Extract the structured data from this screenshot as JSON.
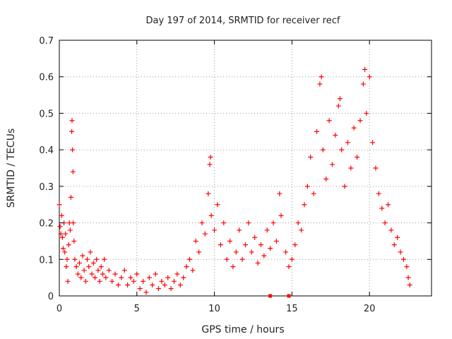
{
  "chart_data": {
    "type": "scatter",
    "title": "Day 197 of 2014, SRMTID for receiver recf",
    "xlabel": "GPS time / hours",
    "ylabel": "SRMTID / TECUs",
    "xlim": [
      0,
      24
    ],
    "ylim": [
      0,
      0.7
    ],
    "x_ticks": [
      "0",
      "5",
      "10",
      "15",
      "20"
    ],
    "y_ticks": [
      "0",
      "0.1",
      "0.2",
      "0.3",
      "0.4",
      "0.5",
      "0.6",
      "0.7"
    ],
    "grid": true,
    "marker": "plus",
    "color": "#ff0000",
    "series": [
      {
        "name": "SRMTID",
        "points": [
          [
            0.0,
            0.25
          ],
          [
            0.05,
            0.19
          ],
          [
            0.1,
            0.17
          ],
          [
            0.15,
            0.22
          ],
          [
            0.2,
            0.16
          ],
          [
            0.25,
            0.13
          ],
          [
            0.3,
            0.2
          ],
          [
            0.35,
            0.12
          ],
          [
            0.4,
            0.17
          ],
          [
            0.45,
            0.08
          ],
          [
            0.5,
            0.1
          ],
          [
            0.55,
            0.04
          ],
          [
            0.6,
            0.14
          ],
          [
            0.65,
            0.2
          ],
          [
            0.7,
            0.18
          ],
          [
            0.75,
            0.27
          ],
          [
            0.8,
            0.45
          ],
          [
            0.82,
            0.48
          ],
          [
            0.85,
            0.4
          ],
          [
            0.88,
            0.34
          ],
          [
            0.9,
            0.2
          ],
          [
            0.95,
            0.15
          ],
          [
            1.0,
            0.1
          ],
          [
            1.1,
            0.08
          ],
          [
            1.2,
            0.06
          ],
          [
            1.3,
            0.09
          ],
          [
            1.4,
            0.05
          ],
          [
            1.5,
            0.11
          ],
          [
            1.6,
            0.07
          ],
          [
            1.7,
            0.04
          ],
          [
            1.8,
            0.1
          ],
          [
            1.9,
            0.08
          ],
          [
            2.0,
            0.12
          ],
          [
            2.1,
            0.06
          ],
          [
            2.2,
            0.09
          ],
          [
            2.3,
            0.05
          ],
          [
            2.4,
            0.1
          ],
          [
            2.5,
            0.07
          ],
          [
            2.6,
            0.04
          ],
          [
            2.7,
            0.08
          ],
          [
            2.8,
            0.06
          ],
          [
            2.9,
            0.1
          ],
          [
            3.0,
            0.05
          ],
          [
            3.2,
            0.07
          ],
          [
            3.4,
            0.04
          ],
          [
            3.6,
            0.06
          ],
          [
            3.8,
            0.03
          ],
          [
            4.0,
            0.05
          ],
          [
            4.2,
            0.07
          ],
          [
            4.4,
            0.03
          ],
          [
            4.6,
            0.05
          ],
          [
            4.8,
            0.04
          ],
          [
            5.0,
            0.06
          ],
          [
            5.2,
            0.02
          ],
          [
            5.4,
            0.04
          ],
          [
            5.6,
            0.01
          ],
          [
            5.8,
            0.05
          ],
          [
            6.0,
            0.03
          ],
          [
            6.2,
            0.06
          ],
          [
            6.4,
            0.02
          ],
          [
            6.6,
            0.04
          ],
          [
            6.8,
            0.03
          ],
          [
            7.0,
            0.05
          ],
          [
            7.2,
            0.02
          ],
          [
            7.4,
            0.04
          ],
          [
            7.6,
            0.06
          ],
          [
            7.8,
            0.03
          ],
          [
            8.0,
            0.05
          ],
          [
            8.2,
            0.08
          ],
          [
            8.4,
            0.1
          ],
          [
            8.6,
            0.07
          ],
          [
            8.8,
            0.15
          ],
          [
            9.0,
            0.12
          ],
          [
            9.2,
            0.2
          ],
          [
            9.4,
            0.17
          ],
          [
            9.6,
            0.28
          ],
          [
            9.7,
            0.36
          ],
          [
            9.75,
            0.38
          ],
          [
            9.8,
            0.22
          ],
          [
            10.0,
            0.18
          ],
          [
            10.2,
            0.25
          ],
          [
            10.4,
            0.14
          ],
          [
            10.6,
            0.2
          ],
          [
            10.8,
            0.1
          ],
          [
            11.0,
            0.15
          ],
          [
            11.2,
            0.08
          ],
          [
            11.4,
            0.12
          ],
          [
            11.6,
            0.18
          ],
          [
            11.8,
            0.1
          ],
          [
            12.0,
            0.14
          ],
          [
            12.2,
            0.2
          ],
          [
            12.4,
            0.12
          ],
          [
            12.6,
            0.16
          ],
          [
            12.8,
            0.09
          ],
          [
            13.0,
            0.14
          ],
          [
            13.2,
            0.11
          ],
          [
            13.4,
            0.18
          ],
          [
            13.6,
            0.13
          ],
          [
            13.8,
            0.2
          ],
          [
            14.0,
            0.15
          ],
          [
            14.2,
            0.28
          ],
          [
            14.3,
            0.22
          ],
          [
            14.6,
            0.12
          ],
          [
            14.8,
            0.08
          ],
          [
            15.0,
            0.1
          ],
          [
            15.2,
            0.14
          ],
          [
            15.4,
            0.2
          ],
          [
            15.6,
            0.18
          ],
          [
            15.8,
            0.25
          ],
          [
            16.0,
            0.3
          ],
          [
            16.2,
            0.38
          ],
          [
            16.4,
            0.28
          ],
          [
            16.6,
            0.45
          ],
          [
            16.8,
            0.58
          ],
          [
            16.9,
            0.6
          ],
          [
            17.0,
            0.4
          ],
          [
            17.2,
            0.32
          ],
          [
            17.4,
            0.48
          ],
          [
            17.6,
            0.36
          ],
          [
            17.8,
            0.44
          ],
          [
            18.0,
            0.52
          ],
          [
            18.1,
            0.54
          ],
          [
            18.2,
            0.4
          ],
          [
            18.4,
            0.3
          ],
          [
            18.6,
            0.42
          ],
          [
            18.8,
            0.35
          ],
          [
            19.0,
            0.46
          ],
          [
            19.2,
            0.38
          ],
          [
            19.4,
            0.48
          ],
          [
            19.6,
            0.58
          ],
          [
            19.7,
            0.62
          ],
          [
            19.8,
            0.5
          ],
          [
            20.0,
            0.6
          ],
          [
            20.2,
            0.42
          ],
          [
            20.4,
            0.35
          ],
          [
            20.6,
            0.28
          ],
          [
            20.8,
            0.24
          ],
          [
            21.0,
            0.2
          ],
          [
            21.2,
            0.25
          ],
          [
            21.4,
            0.18
          ],
          [
            21.6,
            0.14
          ],
          [
            21.8,
            0.16
          ],
          [
            22.0,
            0.12
          ],
          [
            22.2,
            0.1
          ],
          [
            22.4,
            0.08
          ],
          [
            22.5,
            0.05
          ],
          [
            22.6,
            0.03
          ]
        ]
      }
    ],
    "bottom_markers": [
      13.6,
      14.8
    ]
  }
}
